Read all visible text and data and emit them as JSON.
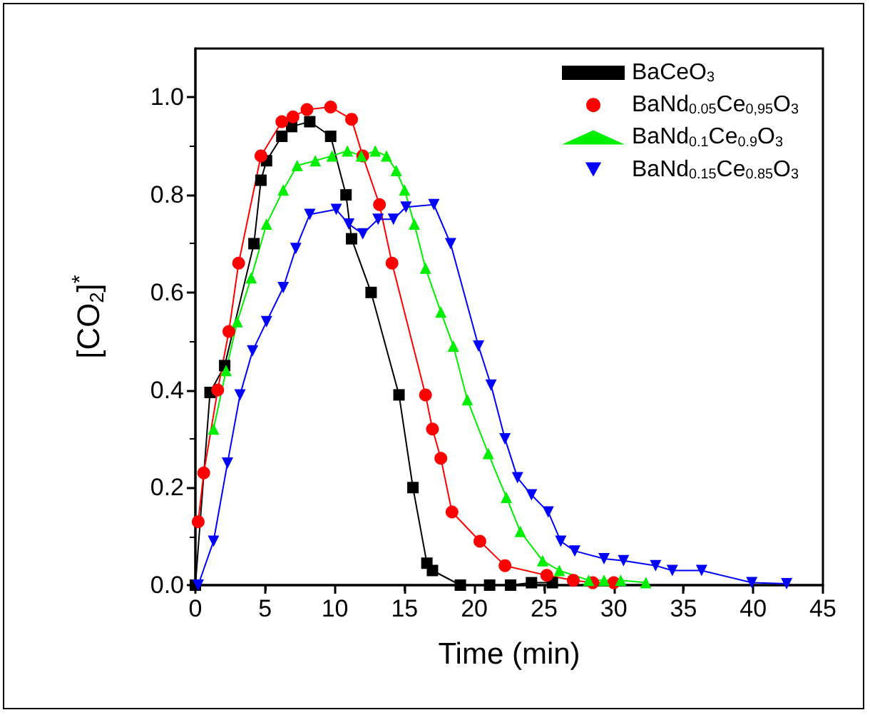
{
  "chart_data": {
    "type": "line",
    "xlabel": "Time (min)",
    "ylabel": "[CO$_{2}$]$^{*}$",
    "xlim": [
      0,
      45
    ],
    "xticks": [
      0,
      5,
      10,
      15,
      20,
      25,
      30,
      35,
      40,
      45
    ],
    "ylim": [
      0,
      1.1
    ],
    "yticks": [
      {
        "value": 0,
        "label": "0.0"
      },
      {
        "value": 0.2,
        "label": "0.2"
      },
      {
        "value": 0.4,
        "label": "0.4"
      },
      {
        "value": 0.6,
        "label": "0.6"
      },
      {
        "value": 0.8,
        "label": "0.8"
      },
      {
        "value": 1.0,
        "label": "1.0"
      }
    ],
    "grid": false,
    "legend": "top right",
    "line_style": "solid",
    "series": [
      {
        "name": "BaCeO$_{3}$",
        "color": "#000000",
        "marker": "square",
        "x": [
          0,
          1.05,
          2.1,
          4.2,
          4.7,
          5.1,
          6.2,
          6.9,
          8.2,
          9.7,
          10.8,
          11.2,
          12.6,
          14.6,
          15.6,
          16.6,
          17.0,
          19.0,
          21.1,
          22.6,
          24.1,
          25.6
        ],
        "values": [
          0,
          0.395,
          0.45,
          0.7,
          0.83,
          0.87,
          0.92,
          0.94,
          0.95,
          0.92,
          0.8,
          0.71,
          0.6,
          0.39,
          0.2,
          0.045,
          0.03,
          0,
          0,
          0,
          0.005,
          0.005
        ]
      },
      {
        "name": "BaNd$_{0.05}$Ce$_{0,95}$O$_{3}$",
        "color": "#ff0000",
        "marker": "circle",
        "x": [
          0.2,
          0.6,
          1.6,
          2.4,
          3.1,
          4.7,
          6.2,
          7.0,
          8.0,
          9.7,
          11.2,
          12.0,
          13.2,
          14.1,
          16.5,
          17.0,
          17.6,
          18.4,
          20.4,
          22.2,
          25.2,
          27.1,
          28.5,
          30.0
        ],
        "values": [
          0.13,
          0.23,
          0.4,
          0.52,
          0.66,
          0.88,
          0.95,
          0.96,
          0.975,
          0.98,
          0.955,
          0.88,
          0.78,
          0.66,
          0.39,
          0.32,
          0.26,
          0.15,
          0.09,
          0.04,
          0.02,
          0.01,
          0.005,
          0.005
        ]
      },
      {
        "name": "BaNd$_{0.1}$Ce$_{0.9}$O$_{3}$",
        "color": "#00ee00",
        "marker": "triangle",
        "x": [
          1.3,
          2.2,
          3.0,
          4.0,
          5.1,
          6.3,
          7.3,
          8.6,
          9.8,
          10.9,
          11.9,
          12.9,
          13.7,
          14.4,
          15.0,
          15.7,
          16.5,
          17.6,
          18.5,
          19.5,
          21.0,
          22.3,
          23.3,
          24.9,
          26.1,
          28.2,
          29.3,
          30.5,
          32.3
        ],
        "values": [
          0.32,
          0.44,
          0.54,
          0.63,
          0.74,
          0.81,
          0.86,
          0.87,
          0.88,
          0.89,
          0.88,
          0.89,
          0.88,
          0.85,
          0.81,
          0.74,
          0.65,
          0.56,
          0.49,
          0.38,
          0.27,
          0.18,
          0.11,
          0.05,
          0.03,
          0.01,
          0.01,
          0.01,
          0.005
        ]
      },
      {
        "name": "BaNd$_{0.15}$Ce$_{0.85}$O$_{3}$",
        "color": "#0000ff",
        "marker": "triangle-down",
        "x": [
          0.2,
          1.3,
          2.3,
          3.2,
          4.1,
          5.1,
          6.3,
          7.2,
          8.2,
          10.1,
          11.0,
          12.0,
          13.1,
          14.2,
          15.1,
          17.1,
          18.3,
          20.3,
          21.2,
          22.2,
          23.1,
          24.1,
          25.3,
          26.2,
          27.2,
          29.3,
          30.7,
          33.0,
          34.2,
          36.3,
          39.9,
          42.4
        ],
        "values": [
          0,
          0.09,
          0.25,
          0.39,
          0.48,
          0.54,
          0.61,
          0.69,
          0.76,
          0.77,
          0.74,
          0.72,
          0.75,
          0.75,
          0.775,
          0.78,
          0.7,
          0.49,
          0.41,
          0.3,
          0.22,
          0.185,
          0.15,
          0.09,
          0.07,
          0.054,
          0.05,
          0.04,
          0.03,
          0.03,
          0.005,
          0.003
        ]
      }
    ]
  }
}
